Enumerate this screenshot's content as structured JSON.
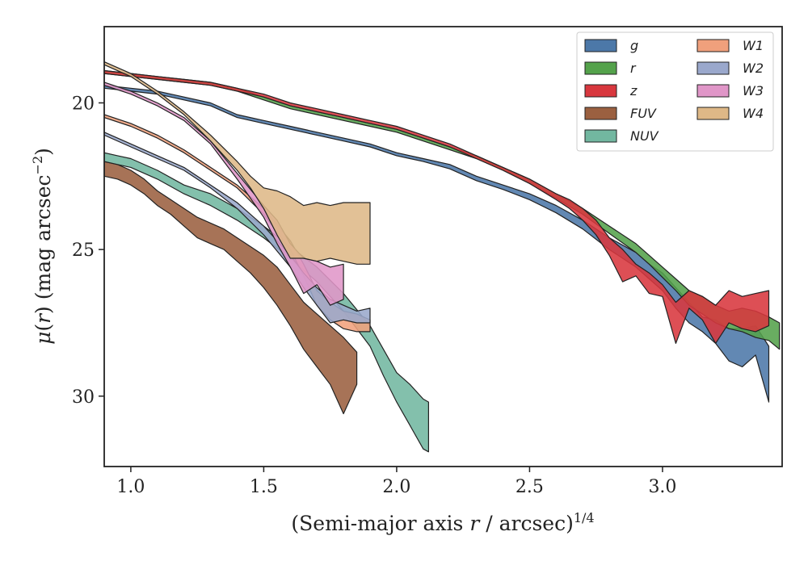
{
  "chart_data": {
    "type": "area",
    "title": "",
    "xlabel": "(Semi-major axis r / arcsec)^1/4",
    "ylabel": "μ(r) (mag arcsec^−2)",
    "xlim": [
      0.9,
      3.45
    ],
    "ylim": [
      32.4,
      17.4
    ],
    "y_inverted": true,
    "x_ticks": [
      "1.0",
      "1.5",
      "2.0",
      "2.5",
      "3.0"
    ],
    "y_ticks": [
      "20",
      "25",
      "30"
    ],
    "grid": false,
    "legend_position": "top-right",
    "legend_columns": 2,
    "series": [
      {
        "name": "g",
        "color": "#4c78a8",
        "x": [
          0.9,
          1.0,
          1.1,
          1.2,
          1.3,
          1.4,
          1.5,
          1.6,
          1.7,
          1.8,
          1.9,
          2.0,
          2.1,
          2.2,
          2.3,
          2.4,
          2.5,
          2.6,
          2.7,
          2.8,
          2.9,
          2.95,
          3.0,
          3.05,
          3.1,
          3.15,
          3.2,
          3.25,
          3.3,
          3.35,
          3.4
        ],
        "top": [
          19.4,
          19.5,
          19.6,
          19.8,
          20.0,
          20.4,
          20.6,
          20.8,
          21.0,
          21.2,
          21.4,
          21.7,
          21.9,
          22.1,
          22.5,
          22.8,
          23.1,
          23.5,
          24.0,
          24.6,
          25.1,
          25.5,
          25.8,
          26.3,
          26.8,
          27.3,
          27.4,
          27.7,
          27.7,
          27.6,
          28.3
        ],
        "bottom": [
          19.5,
          19.6,
          19.7,
          19.9,
          20.1,
          20.5,
          20.7,
          20.9,
          21.1,
          21.3,
          21.5,
          21.8,
          22.0,
          22.25,
          22.65,
          22.95,
          23.3,
          23.75,
          24.3,
          25.0,
          25.6,
          26.0,
          26.4,
          27.0,
          27.5,
          27.8,
          28.2,
          28.8,
          29.0,
          28.6,
          30.2
        ]
      },
      {
        "name": "r",
        "color": "#54a24b",
        "x": [
          0.9,
          1.0,
          1.1,
          1.2,
          1.3,
          1.4,
          1.5,
          1.6,
          1.7,
          1.8,
          1.9,
          2.0,
          2.1,
          2.2,
          2.3,
          2.4,
          2.5,
          2.6,
          2.7,
          2.8,
          2.9,
          2.95,
          3.0,
          3.05,
          3.1,
          3.15,
          3.2,
          3.25,
          3.3,
          3.35,
          3.4,
          3.44
        ],
        "top": [
          18.9,
          19.0,
          19.1,
          19.2,
          19.3,
          19.5,
          19.8,
          20.1,
          20.3,
          20.5,
          20.7,
          20.9,
          21.2,
          21.5,
          21.8,
          22.2,
          22.6,
          23.1,
          23.6,
          24.2,
          24.8,
          25.2,
          25.6,
          26.0,
          26.4,
          26.6,
          26.9,
          27.1,
          27.0,
          27.1,
          27.3,
          27.5
        ],
        "bottom": [
          19.0,
          19.1,
          19.2,
          19.3,
          19.4,
          19.6,
          19.9,
          20.2,
          20.4,
          20.6,
          20.8,
          21.0,
          21.3,
          21.6,
          21.9,
          22.3,
          22.75,
          23.25,
          23.8,
          24.45,
          25.1,
          25.5,
          25.95,
          26.4,
          26.9,
          27.2,
          27.5,
          27.7,
          27.8,
          28.0,
          28.1,
          28.4
        ]
      },
      {
        "name": "z",
        "color": "#d8373e",
        "x": [
          0.9,
          1.0,
          1.1,
          1.2,
          1.3,
          1.4,
          1.5,
          1.6,
          1.7,
          1.8,
          1.9,
          2.0,
          2.1,
          2.2,
          2.3,
          2.4,
          2.5,
          2.6,
          2.65,
          2.7,
          2.75,
          2.8,
          2.85,
          2.9,
          2.95,
          3.0,
          3.05,
          3.1,
          3.15,
          3.2,
          3.25,
          3.3,
          3.35,
          3.4
        ],
        "top": [
          18.9,
          19.0,
          19.1,
          19.2,
          19.3,
          19.5,
          19.7,
          20.0,
          20.2,
          20.4,
          20.6,
          20.8,
          21.1,
          21.4,
          21.8,
          22.2,
          22.6,
          23.1,
          23.3,
          23.6,
          24.0,
          24.6,
          25.0,
          25.5,
          25.8,
          26.2,
          26.8,
          26.4,
          26.6,
          26.9,
          26.4,
          26.6,
          26.5,
          26.4
        ],
        "bottom": [
          19.0,
          19.1,
          19.2,
          19.3,
          19.4,
          19.6,
          19.8,
          20.1,
          20.3,
          20.5,
          20.7,
          20.9,
          21.2,
          21.5,
          21.9,
          22.3,
          22.75,
          23.3,
          23.6,
          24.0,
          24.5,
          25.2,
          26.1,
          25.9,
          26.5,
          26.6,
          28.2,
          27.0,
          27.4,
          28.2,
          27.5,
          27.7,
          27.8,
          27.6
        ]
      },
      {
        "name": "FUV",
        "color": "#9b6040",
        "x": [
          0.9,
          0.95,
          1.0,
          1.05,
          1.1,
          1.15,
          1.2,
          1.25,
          1.3,
          1.35,
          1.4,
          1.45,
          1.5,
          1.55,
          1.6,
          1.65,
          1.7,
          1.75,
          1.8,
          1.85
        ],
        "top": [
          22.0,
          22.1,
          22.3,
          22.6,
          23.0,
          23.3,
          23.6,
          23.9,
          24.1,
          24.3,
          24.6,
          24.9,
          25.2,
          25.6,
          26.2,
          26.8,
          27.2,
          27.6,
          28.0,
          28.5
        ],
        "bottom": [
          22.5,
          22.6,
          22.8,
          23.1,
          23.5,
          23.8,
          24.2,
          24.6,
          24.8,
          25.0,
          25.4,
          25.8,
          26.3,
          26.9,
          27.6,
          28.4,
          29.0,
          29.6,
          30.6,
          29.6
        ]
      },
      {
        "name": "NUV",
        "color": "#72b7a0",
        "x": [
          0.9,
          0.95,
          1.0,
          1.1,
          1.2,
          1.3,
          1.4,
          1.5,
          1.6,
          1.7,
          1.8,
          1.9,
          1.95,
          2.0,
          2.05,
          2.1,
          2.12
        ],
        "top": [
          21.7,
          21.8,
          21.9,
          22.3,
          22.8,
          23.1,
          23.6,
          24.2,
          24.9,
          25.6,
          26.5,
          27.6,
          28.4,
          29.2,
          29.6,
          30.1,
          30.2
        ],
        "bottom": [
          22.0,
          22.1,
          22.2,
          22.6,
          23.1,
          23.5,
          24.0,
          24.6,
          25.3,
          26.1,
          27.1,
          28.3,
          29.3,
          30.2,
          31.0,
          31.8,
          31.9
        ]
      },
      {
        "name": "W1",
        "color": "#f0a07c",
        "x": [
          0.9,
          1.0,
          1.1,
          1.2,
          1.3,
          1.4,
          1.5,
          1.6,
          1.65,
          1.7,
          1.75,
          1.8,
          1.85,
          1.9
        ],
        "top": [
          20.4,
          20.7,
          21.1,
          21.6,
          22.2,
          22.8,
          23.6,
          24.7,
          25.5,
          26.4,
          26.8,
          27.1,
          27.2,
          27.4
        ],
        "bottom": [
          20.5,
          20.8,
          21.2,
          21.7,
          22.3,
          22.9,
          23.8,
          25.0,
          25.9,
          26.9,
          27.4,
          27.7,
          27.8,
          27.8
        ]
      },
      {
        "name": "W2",
        "color": "#9aa8cc",
        "x": [
          0.9,
          1.0,
          1.1,
          1.2,
          1.3,
          1.4,
          1.5,
          1.6,
          1.65,
          1.7,
          1.75,
          1.8,
          1.85,
          1.9
        ],
        "top": [
          21.0,
          21.4,
          21.8,
          22.2,
          22.8,
          23.4,
          24.2,
          25.2,
          25.8,
          26.3,
          26.7,
          26.9,
          27.1,
          27.0
        ],
        "bottom": [
          21.1,
          21.5,
          21.9,
          22.3,
          22.9,
          23.6,
          24.5,
          25.6,
          26.3,
          26.9,
          27.5,
          27.4,
          27.5,
          27.5
        ]
      },
      {
        "name": "W3",
        "color": "#e096c8",
        "x": [
          0.9,
          1.0,
          1.1,
          1.2,
          1.3,
          1.4,
          1.5,
          1.55,
          1.6,
          1.65,
          1.7,
          1.75,
          1.8
        ],
        "top": [
          19.3,
          19.6,
          20.0,
          20.5,
          21.3,
          22.4,
          23.5,
          24.0,
          24.8,
          25.3,
          25.4,
          25.6,
          25.5
        ],
        "bottom": [
          19.4,
          19.7,
          20.1,
          20.6,
          21.4,
          22.6,
          23.9,
          24.8,
          25.6,
          26.5,
          26.2,
          26.9,
          26.7
        ]
      },
      {
        "name": "W4",
        "color": "#deb887",
        "x": [
          0.9,
          1.0,
          1.1,
          1.2,
          1.3,
          1.4,
          1.45,
          1.5,
          1.55,
          1.6,
          1.65,
          1.7,
          1.75,
          1.8,
          1.85,
          1.9
        ],
        "top": [
          18.6,
          19.0,
          19.6,
          20.3,
          21.1,
          22.0,
          22.5,
          22.9,
          23.0,
          23.2,
          23.5,
          23.4,
          23.5,
          23.4,
          23.4,
          23.4
        ],
        "bottom": [
          18.7,
          19.1,
          19.7,
          20.4,
          21.3,
          22.3,
          22.9,
          23.6,
          24.5,
          25.3,
          25.3,
          25.4,
          25.3,
          25.4,
          25.5,
          25.5
        ]
      }
    ]
  }
}
